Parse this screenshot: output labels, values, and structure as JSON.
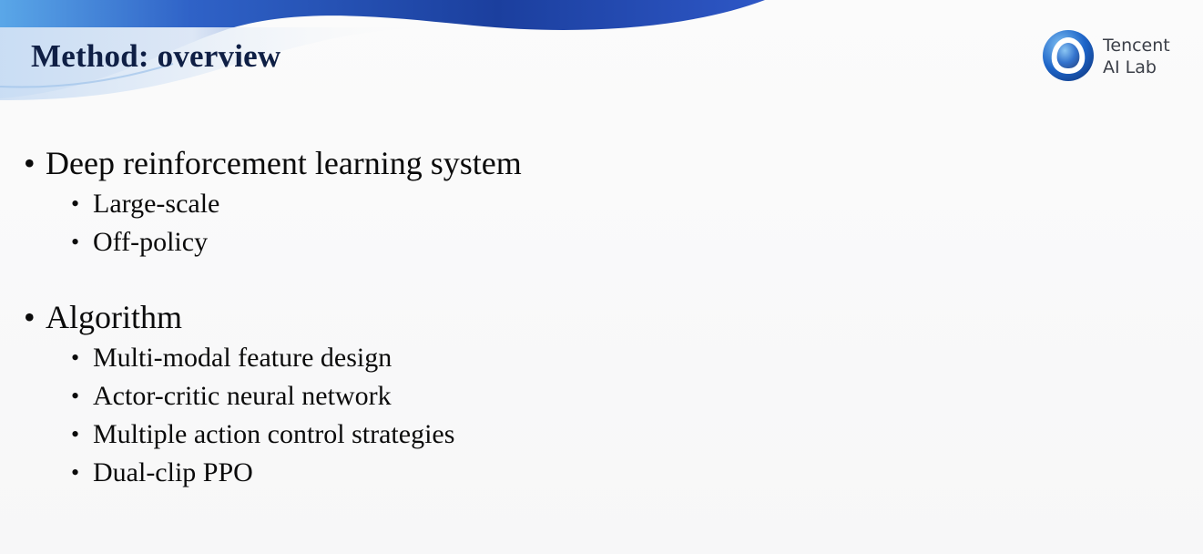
{
  "slide": {
    "title": "Method: overview",
    "logo": {
      "line1": "Tencent",
      "line2": "AI Lab"
    },
    "bullet_glyph": "•",
    "sections": [
      {
        "heading": "Deep reinforcement learning system",
        "items": [
          "Large-scale",
          "Off-policy"
        ]
      },
      {
        "heading": "Algorithm",
        "items": [
          "Multi-modal feature design",
          "Actor-critic neural network",
          "Multiple action control strategies",
          "Dual-clip PPO"
        ]
      }
    ]
  },
  "colors": {
    "title": "#0f1f45",
    "wave_dark": "#1b3f9e",
    "wave_light": "#5aa7e8",
    "logo_blue": "#1d64c8"
  }
}
